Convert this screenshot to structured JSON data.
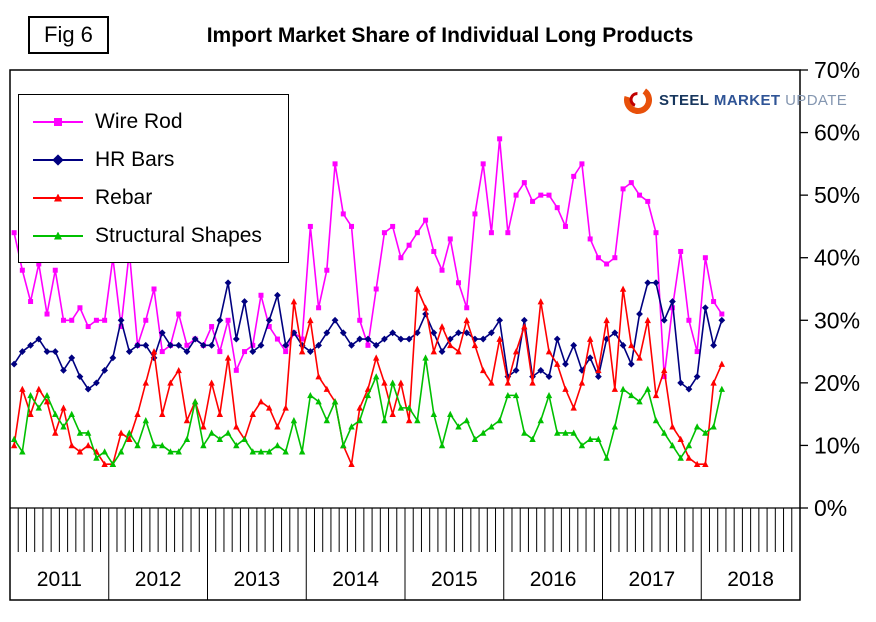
{
  "figure": {
    "label": "Fig 6",
    "title": "Import Market Share of Individual Long Products"
  },
  "logo": {
    "steel": "STEEL",
    "market": "MARKET",
    "update": "UPDATE",
    "swoosh_color": "#E8500A",
    "swoosh_inner_color": "#C00000"
  },
  "chart_data": {
    "type": "line",
    "title": "Import Market Share of Individual Long Products",
    "xlabel": "",
    "ylabel": "",
    "x_unit": "month",
    "data_start": "2011-01",
    "data_end": "2018-03",
    "years": [
      2011,
      2012,
      2013,
      2014,
      2015,
      2016,
      2017,
      2018
    ],
    "months_per_year": 12,
    "total_month_slots": 96,
    "ylim": [
      0,
      70
    ],
    "yticks": [
      0,
      10,
      20,
      30,
      40,
      50,
      60,
      70
    ],
    "ytick_suffix": "%",
    "y_axis_side": "right",
    "grid": false,
    "legend_position": "top-left",
    "series": [
      {
        "name": "Wire Rod",
        "color": "#FF00FF",
        "marker": "square",
        "values": [
          44,
          38,
          33,
          39,
          31,
          38,
          30,
          30,
          32,
          29,
          30,
          30,
          40,
          29,
          41,
          26,
          30,
          35,
          25,
          26,
          31,
          26,
          27,
          26,
          29,
          25,
          30,
          22,
          25,
          26,
          34,
          29,
          27,
          25,
          28,
          27,
          45,
          32,
          38,
          55,
          47,
          45,
          30,
          26,
          35,
          44,
          45,
          40,
          42,
          44,
          46,
          41,
          38,
          43,
          36,
          32,
          47,
          55,
          44,
          59,
          44,
          50,
          52,
          49,
          50,
          50,
          48,
          45,
          53,
          55,
          43,
          40,
          39,
          40,
          51,
          52,
          50,
          49,
          44,
          21,
          32,
          41,
          30,
          25,
          40,
          33,
          31
        ]
      },
      {
        "name": "HR Bars",
        "color": "#000080",
        "marker": "diamond",
        "values": [
          23,
          25,
          26,
          27,
          25,
          25,
          22,
          24,
          21,
          19,
          20,
          22,
          24,
          30,
          25,
          26,
          26,
          24,
          28,
          26,
          26,
          25,
          27,
          26,
          26,
          30,
          36,
          27,
          33,
          25,
          26,
          30,
          34,
          26,
          28,
          26,
          25,
          26,
          28,
          30,
          28,
          26,
          27,
          27,
          26,
          27,
          28,
          27,
          27,
          28,
          31,
          28,
          25,
          27,
          28,
          28,
          27,
          27,
          28,
          30,
          21,
          22,
          30,
          21,
          22,
          21,
          27,
          23,
          26,
          22,
          24,
          21,
          27,
          28,
          26,
          23,
          31,
          36,
          36,
          30,
          33,
          20,
          19,
          21,
          32,
          26,
          30
        ]
      },
      {
        "name": "Rebar",
        "color": "#FF0000",
        "marker": "triangle",
        "values": [
          10,
          19,
          15,
          19,
          17,
          12,
          16,
          10,
          9,
          10,
          9,
          7,
          7,
          12,
          11,
          15,
          20,
          25,
          15,
          20,
          22,
          14,
          17,
          13,
          20,
          15,
          24,
          13,
          11,
          15,
          17,
          16,
          13,
          16,
          33,
          25,
          30,
          21,
          19,
          17,
          10,
          7,
          16,
          19,
          24,
          20,
          15,
          20,
          14,
          35,
          32,
          25,
          29,
          26,
          25,
          30,
          26,
          22,
          20,
          27,
          20,
          25,
          29,
          20,
          33,
          25,
          23,
          19,
          16,
          20,
          27,
          22,
          30,
          19,
          35,
          26,
          24,
          30,
          18,
          22,
          13,
          11,
          8,
          7,
          7,
          20,
          23
        ]
      },
      {
        "name": "Structural Shapes",
        "color": "#00C000",
        "marker": "triangle",
        "values": [
          11,
          9,
          18,
          16,
          18,
          15,
          13,
          15,
          12,
          12,
          8,
          9,
          7,
          9,
          12,
          10,
          14,
          10,
          10,
          9,
          9,
          11,
          17,
          10,
          12,
          11,
          12,
          10,
          11,
          9,
          9,
          9,
          10,
          9,
          14,
          9,
          18,
          17,
          14,
          17,
          10,
          13,
          14,
          18,
          21,
          14,
          20,
          16,
          16,
          14,
          24,
          15,
          10,
          15,
          13,
          14,
          11,
          12,
          13,
          14,
          18,
          18,
          12,
          11,
          14,
          18,
          12,
          12,
          12,
          10,
          11,
          11,
          8,
          13,
          19,
          18,
          17,
          19,
          14,
          12,
          10,
          8,
          10,
          13,
          12,
          13,
          19
        ]
      }
    ]
  }
}
